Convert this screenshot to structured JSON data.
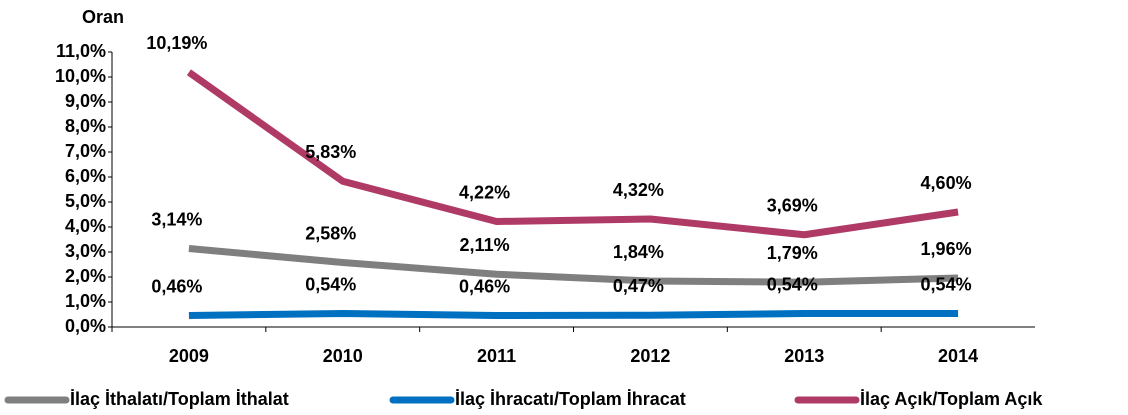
{
  "chart_data": {
    "type": "line",
    "ylabel": "Oran",
    "categories": [
      "2009",
      "2010",
      "2011",
      "2012",
      "2013",
      "2014"
    ],
    "series": [
      {
        "name": "İlaç İthalatı/Toplam İthalat",
        "color": "#7f7f7f",
        "values": [
          3.14,
          2.58,
          2.11,
          1.84,
          1.79,
          1.96
        ],
        "value_labels": [
          "3,14%",
          "2,58%",
          "2,11%",
          "1,84%",
          "1,79%",
          "1,96%"
        ]
      },
      {
        "name": "İlaç İhracatı/Toplam İhracat",
        "color": "#0070c0",
        "values": [
          0.46,
          0.54,
          0.46,
          0.47,
          0.54,
          0.54
        ],
        "value_labels": [
          "0,46%",
          "0,54%",
          "0,46%",
          "0,47%",
          "0,54%",
          "0,54%"
        ]
      },
      {
        "name": "İlaç Açık/Toplam Açık",
        "color": "#b03a66",
        "values": [
          10.19,
          5.83,
          4.22,
          4.32,
          3.69,
          4.6
        ],
        "value_labels": [
          "10,19%",
          "5,83%",
          "4,22%",
          "4,32%",
          "3,69%",
          "4,60%"
        ]
      }
    ],
    "ylim": [
      0,
      11
    ],
    "yticks": [
      {
        "value": 0,
        "label": "0,0%"
      },
      {
        "value": 1,
        "label": "1,0%"
      },
      {
        "value": 2,
        "label": "2,0%"
      },
      {
        "value": 3,
        "label": "3,0%"
      },
      {
        "value": 4,
        "label": "4,0%"
      },
      {
        "value": 5,
        "label": "5,0%"
      },
      {
        "value": 6,
        "label": "6,0%"
      },
      {
        "value": 7,
        "label": "7,0%"
      },
      {
        "value": 8,
        "label": "8,0%"
      },
      {
        "value": 9,
        "label": "9,0%"
      },
      {
        "value": 10,
        "label": "10,0%"
      },
      {
        "value": 11,
        "label": "11,0%"
      }
    ],
    "legend": "bottom"
  }
}
